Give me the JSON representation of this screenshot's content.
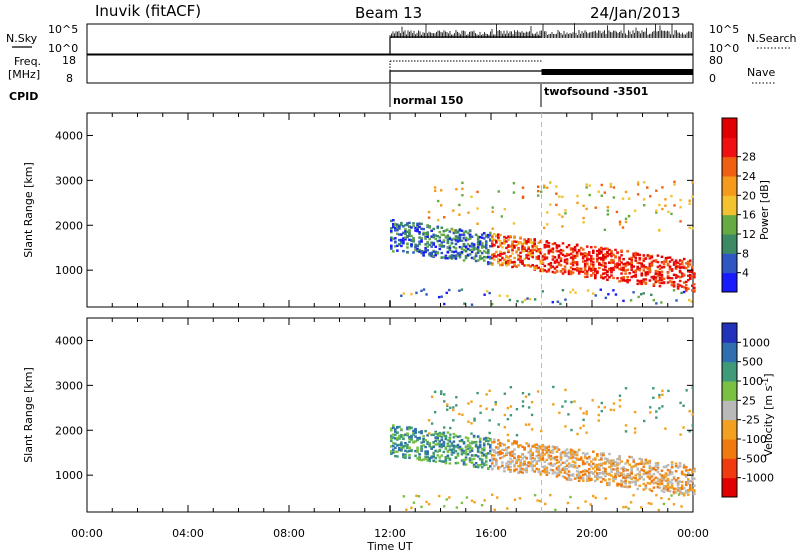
{
  "header": {
    "station": "Inuvik (fitACF)",
    "beam": "Beam 13",
    "date": "24/Jan/2013"
  },
  "nsky_panel": {
    "left_label": "N.Sky",
    "right_label": "N.Search",
    "left_ticks": [
      "10^5",
      "10^0"
    ],
    "right_ticks": [
      "10^5",
      "10^0"
    ]
  },
  "freq_panel": {
    "left_label_line1": "Freq.",
    "left_label_line2": "[MHz]",
    "right_label": "Nave",
    "left_ticks": [
      "18",
      "8"
    ],
    "right_ticks": [
      "80",
      "0"
    ]
  },
  "cpid_panel": {
    "label": "CPID",
    "modes": [
      {
        "name": "normal 150",
        "start_hour": 12
      },
      {
        "name": "twofsound -3501",
        "start_hour": 18
      }
    ]
  },
  "chart_data": [
    {
      "type": "heatmap",
      "title": "",
      "xlabel": "Time UT",
      "ylabel": "Slant Range [km]",
      "xlim": [
        0,
        24
      ],
      "ylim": [
        180,
        4500
      ],
      "y_ticks": [
        "1000",
        "2000",
        "3000",
        "4000"
      ],
      "colorbar": {
        "label": "Power [dB]",
        "ticks": [
          "4",
          "8",
          "12",
          "16",
          "20",
          "24",
          "28"
        ],
        "colors": [
          "#1a1aff",
          "#2e57c4",
          "#3b8a64",
          "#66aa44",
          "#f2c230",
          "#f59a1a",
          "#f06010",
          "#f01010",
          "#e00000"
        ]
      },
      "data_start_hour": 12,
      "mode_change_hour": 18
    },
    {
      "type": "heatmap",
      "title": "",
      "xlabel": "Time UT",
      "ylabel": "Slant Range [km]",
      "xlim": [
        0,
        24
      ],
      "ylim": [
        180,
        4500
      ],
      "y_ticks": [
        "1000",
        "2000",
        "3000",
        "4000"
      ],
      "colorbar": {
        "label": "Velocity [m s^-1]",
        "ticks": [
          "1000",
          "500",
          "100",
          "25",
          "-25",
          "-100",
          "-500",
          "-1000"
        ],
        "colors": [
          "#2233bb",
          "#2f6fb0",
          "#3f9a7a",
          "#7ac143",
          "#b9b9b9",
          "#f2a020",
          "#f07a10",
          "#f03a10",
          "#e00000"
        ]
      },
      "data_start_hour": 12,
      "mode_change_hour": 18
    }
  ],
  "x_ticks": [
    "00:00",
    "04:00",
    "08:00",
    "12:00",
    "16:00",
    "20:00",
    "00:00"
  ],
  "x_label": "Time UT"
}
